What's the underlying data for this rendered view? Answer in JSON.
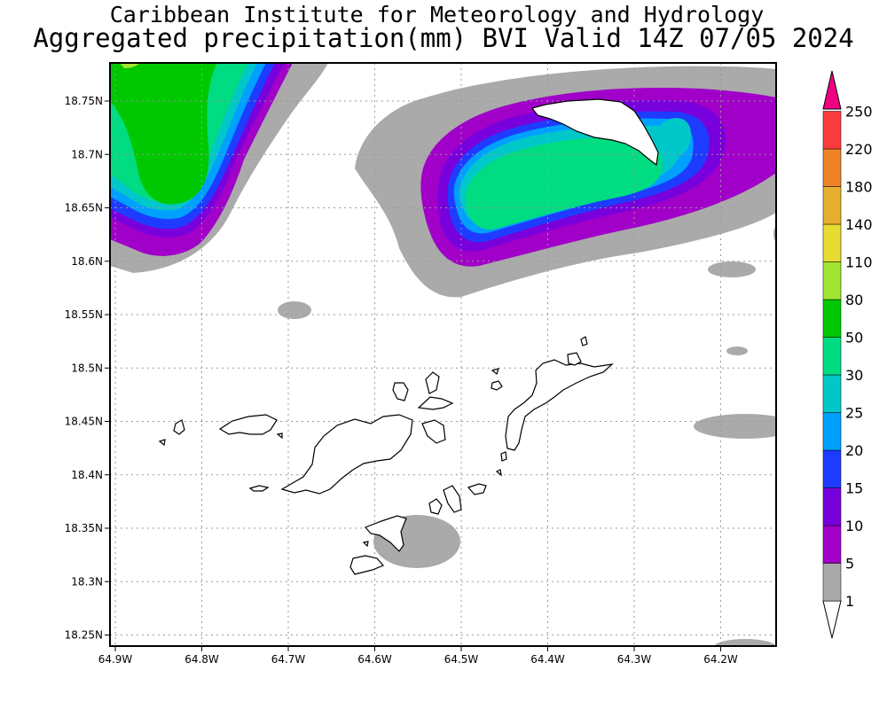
{
  "title_line1": "Caribbean Institute for Meteorology and Hydrology",
  "title_line2": "Aggregated precipitation(mm) BVI Valid 14Z 07/05 2024",
  "lat_labels": [
    "18.75N",
    "18.7N",
    "18.65N",
    "18.6N",
    "18.55N",
    "18.5N",
    "18.45N",
    "18.4N",
    "18.35N",
    "18.3N",
    "18.25N"
  ],
  "lat_values": [
    18.75,
    18.7,
    18.65,
    18.6,
    18.55,
    18.5,
    18.45,
    18.4,
    18.35,
    18.3,
    18.25
  ],
  "lon_labels": [
    "64.9W",
    "64.8W",
    "64.7W",
    "64.6W",
    "64.5W",
    "64.4W",
    "64.3W",
    "64.2W"
  ],
  "lon_values": [
    -64.9,
    -64.8,
    -64.7,
    -64.6,
    -64.5,
    -64.4,
    -64.3,
    -64.2
  ],
  "colorbar": {
    "levels": [
      "1",
      "5",
      "10",
      "15",
      "20",
      "25",
      "30",
      "50",
      "80",
      "110",
      "140",
      "180",
      "220",
      "250"
    ],
    "colors": {
      "c1_5": "#aaaaaa",
      "c5_10": "#a000c8",
      "c10_15": "#7800dc",
      "c15_20": "#1e3cff",
      "c20_25": "#00a0ff",
      "c25_30": "#00c8c8",
      "c30_50": "#00dc82",
      "c50_80": "#00c800",
      "c80_110": "#a0e632",
      "c110_140": "#e6dc32",
      "c140_180": "#e6af2d",
      "c180_220": "#f08228",
      "c220_250": "#fa3c3c",
      "c250plus": "#f00082"
    }
  }
}
